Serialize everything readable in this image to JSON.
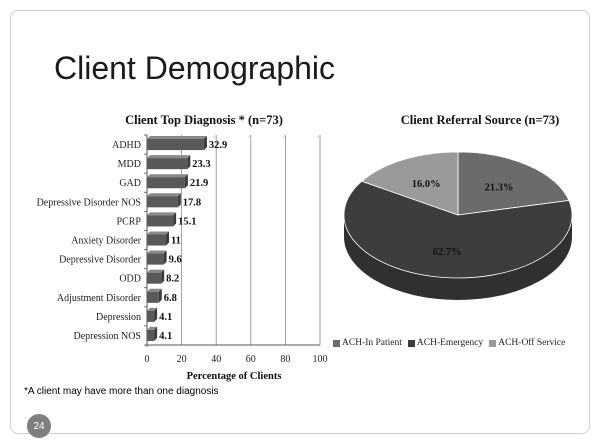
{
  "slide": {
    "title": "Client Demographic",
    "footnote": "*A client may have more than one diagnosis",
    "page_number": "24"
  },
  "chart_data": [
    {
      "type": "bar",
      "orientation": "horizontal",
      "title": "Client Top Diagnosis * (n=73)",
      "xlabel": "Percentage of Clients",
      "ylabel": "",
      "xlim": [
        0,
        100
      ],
      "xticks": [
        0,
        20,
        40,
        60,
        80,
        100
      ],
      "grid": true,
      "categories": [
        "ADHD",
        "MDD",
        "GAD",
        "Depressive Disorder NOS",
        "PCRP",
        "Anxiety Disorder",
        "Depressive Disorder",
        "ODD",
        "Adjustment Disorder",
        "Depression",
        "Depression NOS"
      ],
      "values": [
        32.9,
        23.3,
        21.9,
        17.8,
        15.1,
        11,
        9.6,
        8.2,
        6.8,
        4.1,
        4.1
      ],
      "value_labels": [
        "32.9",
        "23.3",
        "21.9",
        "17.8",
        "15.1",
        "11",
        "9.6",
        "8.2",
        "6.8",
        "4.1",
        "4.1"
      ],
      "bar_color": "#595959"
    },
    {
      "type": "pie",
      "title": "Client Referral Source (n=73)",
      "legend_position": "bottom",
      "slices": [
        {
          "label": "ACH-In Patient",
          "value": 21.3,
          "value_label": "21.3%",
          "color": "#6b6b6b"
        },
        {
          "label": "ACH-Emergency",
          "value": 62.7,
          "value_label": "62.7%",
          "color": "#3d3d3d"
        },
        {
          "label": "ACH-Off Service",
          "value": 16.0,
          "value_label": "16.0%",
          "color": "#9a9a9a"
        }
      ]
    }
  ]
}
